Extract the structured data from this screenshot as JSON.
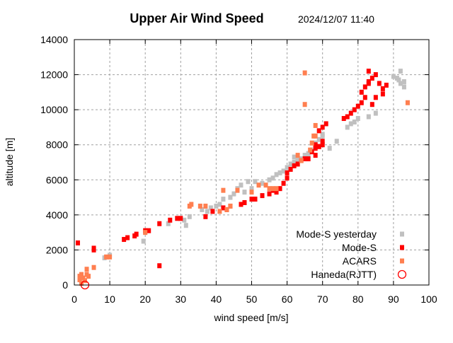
{
  "chart_data": {
    "type": "scatter",
    "title": "Upper Air Wind Speed",
    "subtitle": "2024/12/07 11:40",
    "xlabel": "wind speed  [m/s]",
    "ylabel": "altitude  [m]",
    "xlim": [
      0,
      100
    ],
    "ylim": [
      0,
      14000
    ],
    "xticks": [
      "0",
      "10",
      "20",
      "30",
      "40",
      "50",
      "60",
      "70",
      "80",
      "90",
      "100"
    ],
    "yticks": [
      "0",
      "2000",
      "4000",
      "6000",
      "8000",
      "10000",
      "12000",
      "14000"
    ],
    "xtick_values": [
      0,
      10,
      20,
      30,
      40,
      50,
      60,
      70,
      80,
      90,
      100
    ],
    "ytick_values": [
      0,
      2000,
      4000,
      6000,
      8000,
      10000,
      12000,
      14000
    ],
    "grid": true,
    "legend_position": "bottom-right",
    "series": [
      {
        "name": "Mode-S yesterday",
        "color": "#c0c0c0",
        "marker": "square",
        "points": [
          [
            8.5,
            1550
          ],
          [
            10,
            1700
          ],
          [
            19.5,
            2500
          ],
          [
            20,
            3000
          ],
          [
            26.5,
            3500
          ],
          [
            30,
            3800
          ],
          [
            31,
            3700
          ],
          [
            31.5,
            3400
          ],
          [
            32.5,
            3900
          ],
          [
            36,
            4300
          ],
          [
            37.5,
            4200
          ],
          [
            38.5,
            4400
          ],
          [
            40,
            4500
          ],
          [
            41,
            4600
          ],
          [
            42,
            4900
          ],
          [
            44,
            5000
          ],
          [
            45,
            5200
          ],
          [
            46,
            5500
          ],
          [
            47,
            5700
          ],
          [
            48,
            5300
          ],
          [
            49,
            5900
          ],
          [
            50,
            5500
          ],
          [
            51,
            5900
          ],
          [
            53,
            5800
          ],
          [
            55,
            6000
          ],
          [
            56,
            6100
          ],
          [
            57,
            6300
          ],
          [
            58,
            6400
          ],
          [
            59,
            6500
          ],
          [
            60,
            6700
          ],
          [
            61,
            6900
          ],
          [
            62,
            7000
          ],
          [
            63,
            7100
          ],
          [
            64,
            7200
          ],
          [
            65,
            7400
          ],
          [
            66,
            7500
          ],
          [
            67,
            7700
          ],
          [
            68,
            8100
          ],
          [
            70,
            8600
          ],
          [
            72,
            7800
          ],
          [
            74,
            8200
          ],
          [
            77,
            9000
          ],
          [
            78,
            9200
          ],
          [
            79,
            9300
          ],
          [
            80,
            9500
          ],
          [
            83,
            9600
          ],
          [
            85,
            9800
          ],
          [
            90,
            11900
          ],
          [
            91,
            11800
          ],
          [
            92,
            11500
          ],
          [
            93,
            11300
          ],
          [
            92,
            12200
          ],
          [
            91.5,
            11700
          ],
          [
            93,
            11600
          ],
          [
            62,
            7300
          ],
          [
            63,
            7200
          ],
          [
            69,
            8300
          ],
          [
            70,
            8500
          ],
          [
            66,
            7400
          ]
        ]
      },
      {
        "name": "Mode-S",
        "color": "#ff0000",
        "marker": "square",
        "points": [
          [
            1,
            2400
          ],
          [
            5.5,
            2000
          ],
          [
            5.5,
            2100
          ],
          [
            14,
            2600
          ],
          [
            15,
            2700
          ],
          [
            17,
            2800
          ],
          [
            17.5,
            2900
          ],
          [
            20,
            3100
          ],
          [
            21,
            3100
          ],
          [
            24,
            3500
          ],
          [
            24,
            1100
          ],
          [
            27,
            3700
          ],
          [
            29,
            3800
          ],
          [
            30,
            3800
          ],
          [
            37,
            3900
          ],
          [
            39,
            4200
          ],
          [
            42,
            4400
          ],
          [
            43,
            4300
          ],
          [
            44,
            4500
          ],
          [
            47,
            4600
          ],
          [
            48,
            4700
          ],
          [
            50,
            4900
          ],
          [
            51,
            4900
          ],
          [
            53,
            5100
          ],
          [
            55,
            5200
          ],
          [
            56,
            5400
          ],
          [
            57,
            5300
          ],
          [
            58,
            5500
          ],
          [
            59,
            5800
          ],
          [
            60,
            6100
          ],
          [
            60,
            6400
          ],
          [
            61,
            6600
          ],
          [
            62,
            6800
          ],
          [
            63,
            6900
          ],
          [
            64,
            7100
          ],
          [
            65,
            7200
          ],
          [
            67,
            7600
          ],
          [
            68,
            7800
          ],
          [
            69,
            7900
          ],
          [
            70,
            8200
          ],
          [
            69,
            8800
          ],
          [
            70,
            9000
          ],
          [
            71,
            9200
          ],
          [
            68,
            8000
          ],
          [
            76,
            9500
          ],
          [
            77,
            9600
          ],
          [
            78,
            9800
          ],
          [
            79,
            10000
          ],
          [
            80,
            10200
          ],
          [
            81,
            10400
          ],
          [
            82,
            10700
          ],
          [
            81,
            11000
          ],
          [
            82,
            11300
          ],
          [
            83,
            11500
          ],
          [
            84,
            11800
          ],
          [
            85,
            12000
          ],
          [
            86,
            11500
          ],
          [
            87,
            11200
          ],
          [
            88,
            11400
          ],
          [
            87,
            10900
          ],
          [
            85,
            10700
          ],
          [
            83,
            12200
          ],
          [
            83,
            11600
          ],
          [
            84,
            10300
          ],
          [
            70,
            8000
          ],
          [
            66,
            7200
          ],
          [
            68,
            7400
          ],
          [
            69,
            7900
          ]
        ]
      },
      {
        "name": "ACARS",
        "color": "#ff7f50",
        "marker": "square",
        "points": [
          [
            1.5,
            300
          ],
          [
            1.5,
            500
          ],
          [
            2,
            600
          ],
          [
            2.5,
            400
          ],
          [
            2,
            100
          ],
          [
            3,
            250
          ],
          [
            3.5,
            600
          ],
          [
            3.5,
            900
          ],
          [
            4,
            500
          ],
          [
            5.5,
            1000
          ],
          [
            9,
            1600
          ],
          [
            10,
            1600
          ],
          [
            20,
            3000
          ],
          [
            32.5,
            4500
          ],
          [
            33,
            4600
          ],
          [
            35.5,
            4500
          ],
          [
            37,
            4500
          ],
          [
            41,
            4200
          ],
          [
            42,
            5400
          ],
          [
            43,
            4300
          ],
          [
            44,
            4500
          ],
          [
            46,
            5400
          ],
          [
            50,
            5300
          ],
          [
            52,
            5700
          ],
          [
            54,
            5700
          ],
          [
            55,
            5500
          ],
          [
            56,
            5500
          ],
          [
            57,
            5500
          ],
          [
            63,
            7400
          ],
          [
            64,
            7100
          ],
          [
            65,
            10300
          ],
          [
            65,
            12100
          ],
          [
            67,
            8100
          ],
          [
            67.5,
            8500
          ],
          [
            68,
            9100
          ],
          [
            68,
            8500
          ],
          [
            66.5,
            7700
          ],
          [
            94,
            10400
          ]
        ]
      },
      {
        "name": "Haneda(RJTT)",
        "color": "#ff0000",
        "marker": "open-circle",
        "points": [
          [
            3,
            0
          ]
        ]
      }
    ]
  }
}
